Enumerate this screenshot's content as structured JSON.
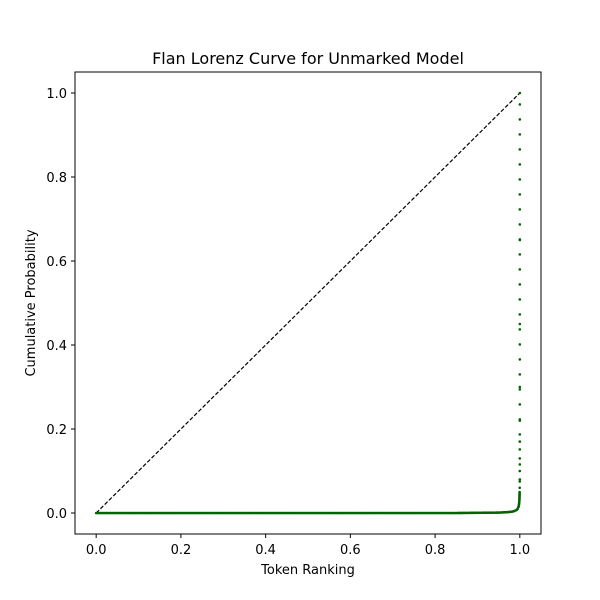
{
  "chart_data": {
    "type": "scatter",
    "title": "Flan Lorenz Curve for Unmarked Model",
    "xlabel": "Token Ranking",
    "ylabel": "Cumulative Probability",
    "xlim": [
      -0.05,
      1.05
    ],
    "ylim": [
      -0.05,
      1.05
    ],
    "xticks": [
      0.0,
      0.2,
      0.4,
      0.6,
      0.8,
      1.0
    ],
    "yticks": [
      0.0,
      0.2,
      0.4,
      0.6,
      0.8,
      1.0
    ],
    "xtick_labels": [
      "0.0",
      "0.2",
      "0.4",
      "0.6",
      "0.8",
      "1.0"
    ],
    "ytick_labels": [
      "0.0",
      "0.2",
      "0.4",
      "0.6",
      "0.8",
      "1.0"
    ],
    "grid": false,
    "equality_line": {
      "x": [
        0,
        1
      ],
      "y": [
        0,
        1
      ],
      "color": "#000000",
      "style": "dashed"
    },
    "series": [
      {
        "color": "#006400",
        "marker": "dot",
        "x": [
          0.0,
          0.05,
          0.1,
          0.15,
          0.2,
          0.25,
          0.3,
          0.35,
          0.4,
          0.45,
          0.5,
          0.55,
          0.6,
          0.65,
          0.7,
          0.75,
          0.8,
          0.85,
          0.9,
          0.95,
          0.97,
          0.98,
          0.985,
          0.99,
          0.993,
          0.995,
          0.997,
          0.998,
          0.9985,
          0.999,
          0.9993,
          0.9995,
          0.9997,
          0.9998,
          0.99985,
          0.9999,
          0.99993,
          0.99995,
          0.99997,
          0.99998,
          0.99999,
          1.0
        ],
        "y": [
          0.0,
          0.0,
          0.0,
          0.0,
          0.0,
          0.0,
          0.0,
          0.0,
          0.0,
          0.0,
          0.0,
          0.0,
          0.0,
          0.0,
          0.0,
          0.0,
          0.0,
          0.0,
          0.0005,
          0.001,
          0.002,
          0.003,
          0.004,
          0.006,
          0.008,
          0.01,
          0.015,
          0.02,
          0.025,
          0.03,
          0.04,
          0.05,
          0.06,
          0.075,
          0.1,
          0.13,
          0.17,
          0.22,
          0.3,
          0.45,
          0.65,
          1.0
        ]
      }
    ]
  }
}
